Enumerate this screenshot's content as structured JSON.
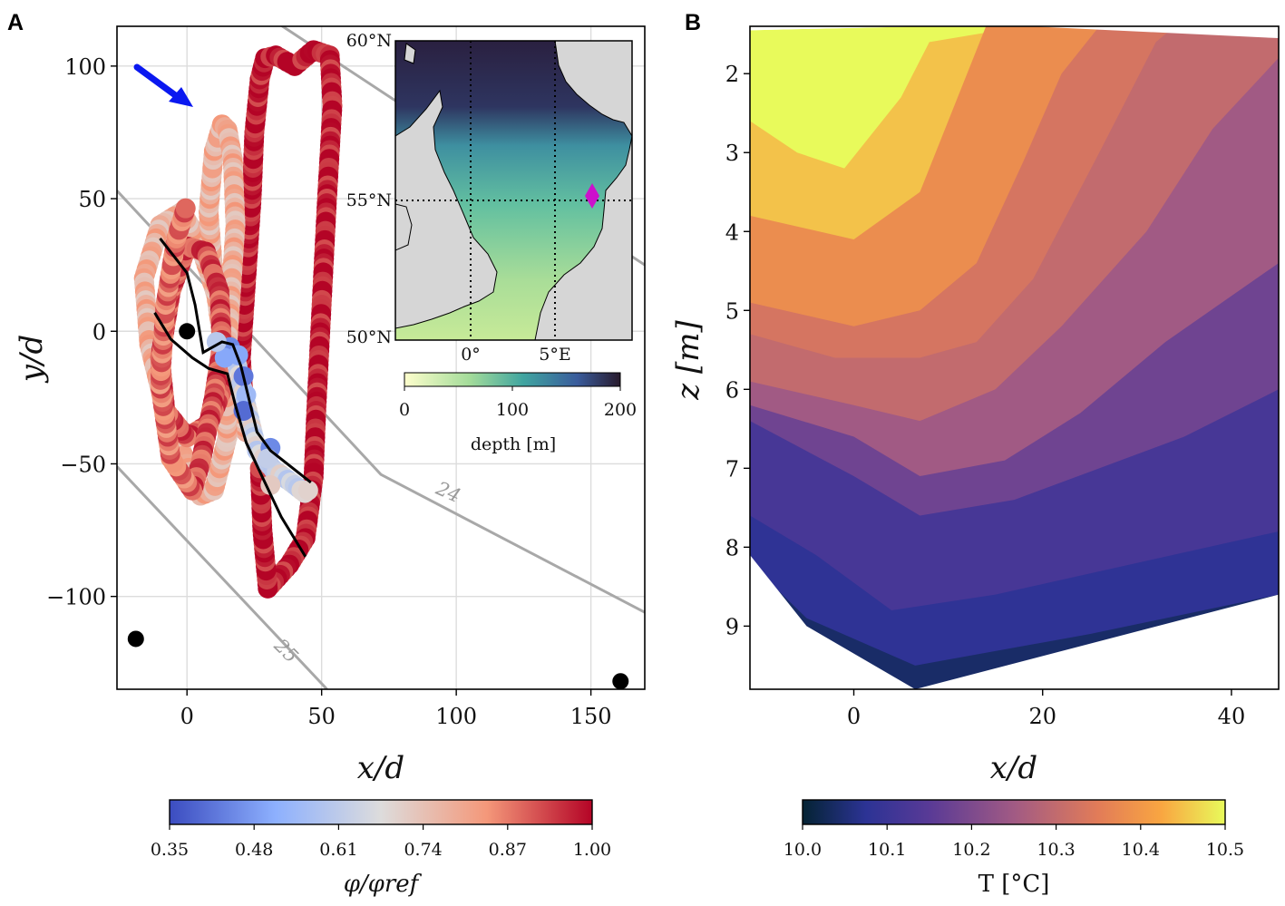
{
  "panels": {
    "a": {
      "letter": "A"
    },
    "b": {
      "letter": "B"
    }
  },
  "chart_data": [
    {
      "type": "scatter",
      "panel": "A",
      "xlabel": "x/d",
      "ylabel": "y/d",
      "xlim": [
        -26,
        170
      ],
      "ylim": [
        -135,
        115
      ],
      "xticks": [
        0,
        50,
        100,
        150
      ],
      "yticks": [
        -100,
        -50,
        0,
        50,
        100
      ],
      "xtick_labels": [
        "0",
        "50",
        "100",
        "150"
      ],
      "ytick_labels": [
        "−100",
        "−50",
        "0",
        "50",
        "100"
      ],
      "grid": true,
      "colormap": "coolwarm",
      "colorbar": {
        "label": "φ/φref",
        "range": [
          0.35,
          1.0
        ],
        "ticks": [
          "0.35",
          "0.48",
          "0.61",
          "0.74",
          "0.87",
          "1.00"
        ]
      },
      "arrow_color": "#0a18f0",
      "markers": [
        {
          "x": 0,
          "y": 0
        },
        {
          "x": -19,
          "y": -116
        },
        {
          "x": 161,
          "y": -132
        }
      ],
      "isolines": [
        {
          "label": "24",
          "points": [
            [
              -26,
              53
            ],
            [
              72,
              -54
            ],
            [
              170,
              -106
            ]
          ]
        },
        {
          "label": "25",
          "points": [
            [
              -26,
              -51
            ],
            [
              52,
              -135
            ]
          ]
        },
        {
          "label": "",
          "points": [
            [
              28,
              120
            ],
            [
              170,
              25
            ]
          ]
        }
      ],
      "paths": [
        {
          "name": "",
          "x": [
            -10,
            0,
            3,
            6,
            13,
            17,
            20,
            26,
            31,
            46
          ],
          "y": [
            35,
            22,
            10,
            -8,
            -4,
            -5,
            -13,
            -38,
            -45,
            -57
          ]
        },
        {
          "name": "",
          "x": [
            -12,
            -6,
            2,
            8,
            15,
            18,
            22,
            28,
            35,
            44
          ],
          "y": [
            7,
            -3,
            -10,
            -14,
            -16,
            -28,
            -42,
            -55,
            -70,
            -85
          ]
        }
      ],
      "trajectory_segments": [
        {
          "phi": 0.98,
          "points": [
            [
              22,
              -38
            ],
            [
              20,
              -10
            ],
            [
              22,
              20
            ],
            [
              24,
              50
            ],
            [
              25,
              75
            ],
            [
              27,
              95
            ],
            [
              29,
              103
            ],
            [
              33,
              104
            ],
            [
              40,
              100
            ],
            [
              47,
              106
            ],
            [
              53,
              104
            ],
            [
              54,
              85
            ],
            [
              52,
              50
            ],
            [
              50,
              10
            ],
            [
              48,
              -30
            ],
            [
              47,
              -55
            ],
            [
              44,
              -78
            ],
            [
              38,
              -88
            ],
            [
              30,
              -97
            ],
            [
              28,
              -75
            ],
            [
              27,
              -50
            ]
          ]
        },
        {
          "phi": 0.78,
          "points": [
            [
              22,
              -38
            ],
            [
              17,
              -15
            ],
            [
              12,
              10
            ],
            [
              4,
              35
            ],
            [
              -2,
              45
            ],
            [
              -10,
              40
            ],
            [
              -16,
              20
            ],
            [
              -14,
              -5
            ],
            [
              -8,
              -30
            ],
            [
              0,
              -50
            ],
            [
              5,
              -62
            ],
            [
              10,
              -60
            ],
            [
              15,
              -40
            ],
            [
              14,
              -10
            ],
            [
              10,
              20
            ],
            [
              8,
              45
            ],
            [
              10,
              68
            ],
            [
              13,
              78
            ],
            [
              15,
              76
            ],
            [
              17,
              65
            ],
            [
              18,
              40
            ],
            [
              16,
              10
            ],
            [
              14,
              -20
            ]
          ]
        },
        {
          "phi": 0.92,
          "points": [
            [
              14,
              -20
            ],
            [
              8,
              -35
            ],
            [
              0,
              -40
            ],
            [
              -8,
              -30
            ],
            [
              -10,
              -10
            ],
            [
              -6,
              15
            ],
            [
              0,
              32
            ],
            [
              7,
              30
            ],
            [
              12,
              15
            ],
            [
              13,
              -5
            ],
            [
              10,
              -25
            ],
            [
              5,
              -50
            ],
            [
              2,
              -60
            ]
          ]
        },
        {
          "phi": 0.88,
          "points": [
            [
              2,
              -60
            ],
            [
              -6,
              -48
            ],
            [
              -10,
              -20
            ],
            [
              -8,
              10
            ],
            [
              -4,
              35
            ],
            [
              0,
              48
            ]
          ]
        },
        {
          "phi": 0.65,
          "points": [
            [
              18,
              -10
            ],
            [
              22,
              -28
            ],
            [
              26,
              -45
            ],
            [
              32,
              -52
            ],
            [
              40,
              -58
            ],
            [
              45,
              -62
            ]
          ]
        }
      ],
      "blue_points": [
        {
          "x": 16,
          "y": -6,
          "phi": 0.45
        },
        {
          "x": 19,
          "y": -9,
          "phi": 0.5
        },
        {
          "x": 21,
          "y": -17,
          "phi": 0.42
        },
        {
          "x": 22,
          "y": -24,
          "phi": 0.55
        },
        {
          "x": 21,
          "y": -30,
          "phi": 0.4
        },
        {
          "x": 14,
          "y": -10,
          "phi": 0.5
        },
        {
          "x": 11,
          "y": -4,
          "phi": 0.6
        },
        {
          "x": 31,
          "y": -44,
          "phi": 0.45
        },
        {
          "x": 30,
          "y": -48,
          "phi": 0.62
        },
        {
          "x": 31,
          "y": -58,
          "phi": 0.72
        },
        {
          "x": 45,
          "y": -60,
          "phi": 0.7
        }
      ]
    },
    {
      "type": "map",
      "panel": "A-inset",
      "lat_labels": [
        "60°N",
        "55°N",
        "50°N"
      ],
      "lon_labels": [
        "0°",
        "5°E"
      ],
      "colorbar": {
        "label": "depth [m]",
        "range": [
          0,
          200
        ],
        "ticks": [
          "0",
          "100",
          "200"
        ]
      },
      "site_marker_color": "#cc11cc"
    },
    {
      "type": "heatmap",
      "panel": "B",
      "xlabel": "x/d",
      "ylabel": "z [m]",
      "xlim": [
        -11,
        45
      ],
      "ylim": [
        9.8,
        1.4
      ],
      "xticks": [
        0,
        20,
        40
      ],
      "yticks": [
        2,
        3,
        4,
        5,
        6,
        7,
        8,
        9
      ],
      "xtick_labels": [
        "0",
        "20",
        "40"
      ],
      "ytick_labels": [
        "2",
        "3",
        "4",
        "5",
        "6",
        "7",
        "8",
        "9"
      ],
      "colormap": "thermal",
      "colorbar": {
        "label": "T [°C]",
        "range": [
          10.0,
          10.5
        ],
        "ticks": [
          "10.0",
          "10.1",
          "10.2",
          "10.3",
          "10.4",
          "10.5"
        ]
      },
      "surface_depth": [
        {
          "x": -11,
          "z": 1.45
        },
        {
          "x": 15,
          "z": 1.38
        },
        {
          "x": 45,
          "z": 1.55
        }
      ],
      "bottom_depth": [
        {
          "x": -11,
          "z": 8.1
        },
        {
          "x": -5,
          "z": 9.0
        },
        {
          "x": 6.5,
          "z": 9.8
        },
        {
          "x": 45,
          "z": 8.6
        }
      ],
      "isotherms": [
        {
          "T": 10.45,
          "points": [
            [
              -11,
              2.6
            ],
            [
              -6,
              3.0
            ],
            [
              -1,
              3.2
            ],
            [
              5,
              2.3
            ],
            [
              8,
              1.6
            ],
            [
              18,
              1.4
            ]
          ]
        },
        {
          "T": 10.38,
          "points": [
            [
              -11,
              3.8
            ],
            [
              0,
              4.1
            ],
            [
              7,
              3.5
            ],
            [
              14,
              1.4
            ]
          ]
        },
        {
          "T": 10.33,
          "points": [
            [
              -11,
              4.9
            ],
            [
              0,
              5.2
            ],
            [
              7,
              5.0
            ],
            [
              13,
              4.4
            ],
            [
              18,
              3.1
            ],
            [
              22,
              2.0
            ],
            [
              26,
              1.4
            ]
          ]
        },
        {
          "T": 10.3,
          "points": [
            [
              -11,
              5.3
            ],
            [
              -2,
              5.6
            ],
            [
              7,
              5.6
            ],
            [
              13,
              5.4
            ],
            [
              19,
              4.6
            ],
            [
              26,
              3.0
            ],
            [
              32,
              1.6
            ],
            [
              34,
              1.4
            ]
          ]
        },
        {
          "T": 10.25,
          "points": [
            [
              -11,
              5.9
            ],
            [
              0,
              6.2
            ],
            [
              7,
              6.4
            ],
            [
              15,
              6.0
            ],
            [
              22,
              5.2
            ],
            [
              31,
              4.0
            ],
            [
              38,
              2.7
            ],
            [
              45,
              1.8
            ]
          ]
        },
        {
          "T": 10.18,
          "points": [
            [
              -11,
              6.2
            ],
            [
              0,
              6.6
            ],
            [
              7,
              7.1
            ],
            [
              16,
              6.9
            ],
            [
              24,
              6.3
            ],
            [
              33,
              5.4
            ],
            [
              45,
              4.4
            ]
          ]
        },
        {
          "T": 10.12,
          "points": [
            [
              -11,
              6.4
            ],
            [
              0,
              7.1
            ],
            [
              7,
              7.6
            ],
            [
              17,
              7.4
            ],
            [
              26,
              7.0
            ],
            [
              35,
              6.6
            ],
            [
              45,
              6.0
            ]
          ]
        },
        {
          "T": 10.08,
          "points": [
            [
              -11,
              7.6
            ],
            [
              -4,
              8.1
            ],
            [
              4,
              8.8
            ],
            [
              15,
              8.6
            ],
            [
              30,
              8.2
            ],
            [
              45,
              7.8
            ]
          ]
        },
        {
          "T": 10.04,
          "points": [
            [
              -11,
              8.2
            ],
            [
              -5,
              8.9
            ],
            [
              6.5,
              9.5
            ],
            [
              25,
              9.1
            ],
            [
              45,
              8.6
            ]
          ]
        }
      ]
    }
  ]
}
